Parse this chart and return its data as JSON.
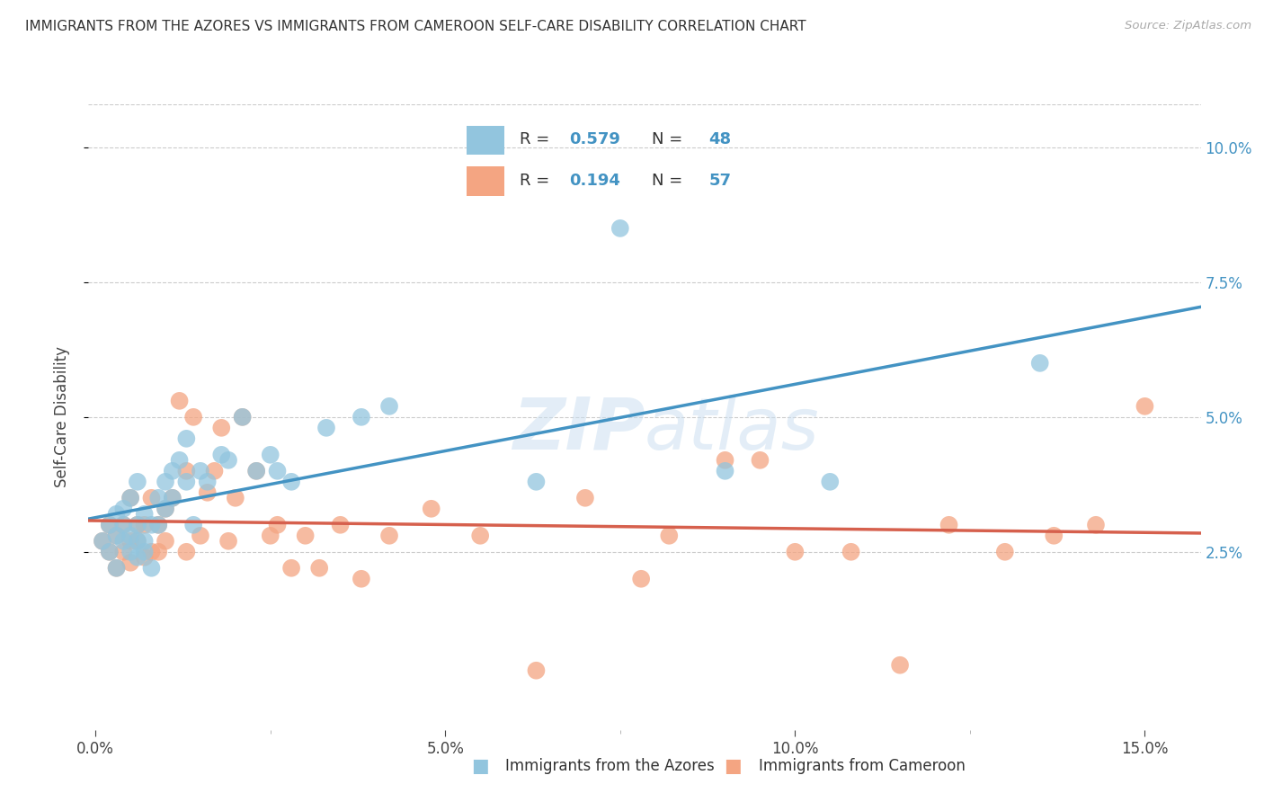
{
  "title": "IMMIGRANTS FROM THE AZORES VS IMMIGRANTS FROM CAMEROON SELF-CARE DISABILITY CORRELATION CHART",
  "source": "Source: ZipAtlas.com",
  "ylabel": "Self-Care Disability",
  "blue_color": "#92c5de",
  "blue_line_color": "#4393c3",
  "pink_color": "#f4a582",
  "pink_line_color": "#d6604d",
  "r_blue": "0.579",
  "n_blue": "48",
  "r_pink": "0.194",
  "n_pink": "57",
  "legend_label_blue": "Immigrants from the Azores",
  "legend_label_pink": "Immigrants from Cameroon",
  "watermark_zip": "ZIP",
  "watermark_atlas": "atlas",
  "xlim": [
    -0.001,
    0.158
  ],
  "ylim": [
    -0.008,
    0.108
  ],
  "blue_scatter_x": [
    0.001,
    0.002,
    0.002,
    0.003,
    0.003,
    0.003,
    0.004,
    0.004,
    0.004,
    0.005,
    0.005,
    0.005,
    0.006,
    0.006,
    0.006,
    0.006,
    0.007,
    0.007,
    0.007,
    0.008,
    0.008,
    0.009,
    0.009,
    0.01,
    0.01,
    0.011,
    0.011,
    0.012,
    0.013,
    0.013,
    0.014,
    0.015,
    0.016,
    0.018,
    0.019,
    0.021,
    0.023,
    0.025,
    0.026,
    0.028,
    0.033,
    0.038,
    0.042,
    0.063,
    0.075,
    0.09,
    0.105,
    0.135
  ],
  "blue_scatter_y": [
    0.027,
    0.03,
    0.025,
    0.032,
    0.028,
    0.022,
    0.03,
    0.027,
    0.033,
    0.035,
    0.028,
    0.025,
    0.03,
    0.027,
    0.024,
    0.038,
    0.032,
    0.027,
    0.025,
    0.03,
    0.022,
    0.035,
    0.03,
    0.038,
    0.033,
    0.04,
    0.035,
    0.042,
    0.038,
    0.046,
    0.03,
    0.04,
    0.038,
    0.043,
    0.042,
    0.05,
    0.04,
    0.043,
    0.04,
    0.038,
    0.048,
    0.05,
    0.052,
    0.038,
    0.085,
    0.04,
    0.038,
    0.06
  ],
  "pink_scatter_x": [
    0.001,
    0.002,
    0.002,
    0.003,
    0.003,
    0.004,
    0.004,
    0.005,
    0.005,
    0.005,
    0.006,
    0.006,
    0.007,
    0.007,
    0.008,
    0.008,
    0.009,
    0.009,
    0.01,
    0.01,
    0.011,
    0.012,
    0.013,
    0.013,
    0.014,
    0.015,
    0.016,
    0.017,
    0.018,
    0.019,
    0.02,
    0.021,
    0.023,
    0.025,
    0.026,
    0.028,
    0.03,
    0.032,
    0.035,
    0.038,
    0.042,
    0.048,
    0.055,
    0.063,
    0.07,
    0.078,
    0.082,
    0.09,
    0.095,
    0.1,
    0.108,
    0.115,
    0.122,
    0.13,
    0.137,
    0.143,
    0.15
  ],
  "pink_scatter_y": [
    0.027,
    0.03,
    0.025,
    0.028,
    0.022,
    0.03,
    0.025,
    0.035,
    0.027,
    0.023,
    0.03,
    0.027,
    0.03,
    0.024,
    0.035,
    0.025,
    0.03,
    0.025,
    0.027,
    0.033,
    0.035,
    0.053,
    0.04,
    0.025,
    0.05,
    0.028,
    0.036,
    0.04,
    0.048,
    0.027,
    0.035,
    0.05,
    0.04,
    0.028,
    0.03,
    0.022,
    0.028,
    0.022,
    0.03,
    0.02,
    0.028,
    0.033,
    0.028,
    0.003,
    0.035,
    0.02,
    0.028,
    0.042,
    0.042,
    0.025,
    0.025,
    0.004,
    0.03,
    0.025,
    0.028,
    0.03,
    0.052
  ]
}
